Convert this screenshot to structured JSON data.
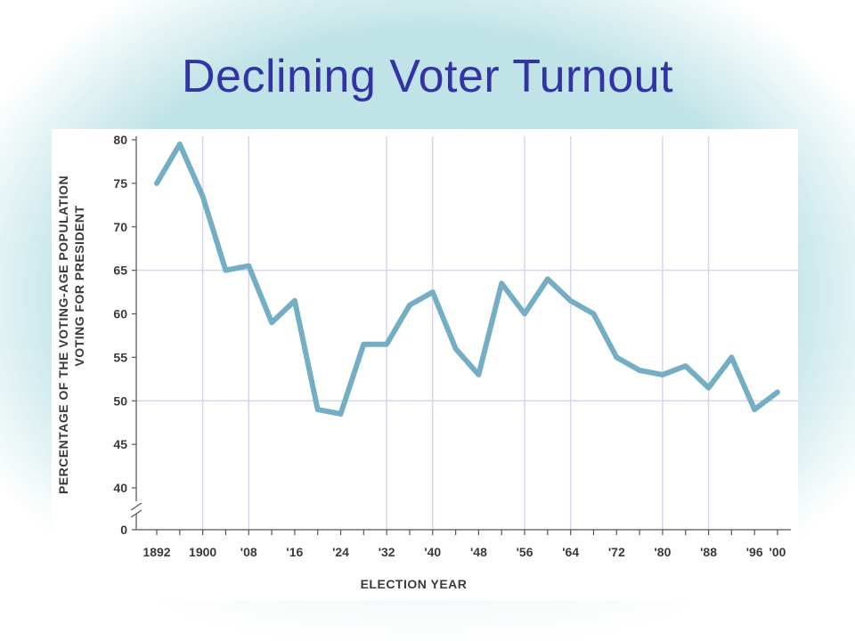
{
  "slide": {
    "title": "Declining Voter Turnout"
  },
  "chart_data": {
    "type": "line",
    "title": "",
    "xlabel": "ELECTION YEAR",
    "ylabel_lines": [
      "PERCENTAGE OF THE VOTING-AGE POPULATION",
      "VOTING FOR PRESIDENT"
    ],
    "x": [
      1892,
      1896,
      1900,
      1904,
      1908,
      1912,
      1916,
      1920,
      1924,
      1928,
      1932,
      1936,
      1940,
      1944,
      1948,
      1952,
      1956,
      1960,
      1964,
      1968,
      1972,
      1976,
      1980,
      1984,
      1988,
      1992,
      1996,
      2000
    ],
    "series": [
      {
        "values": [
          75,
          79.5,
          73.5,
          65,
          65.5,
          59,
          61.5,
          49,
          48.5,
          56.5,
          56.5,
          61,
          62.5,
          56,
          53,
          63.5,
          60,
          64,
          61.5,
          60,
          55,
          53.5,
          53,
          54,
          51.5,
          55,
          49,
          51
        ]
      }
    ],
    "x_ticks": [
      {
        "value": 1892,
        "label": "1892"
      },
      {
        "value": 1900,
        "label": "1900"
      },
      {
        "value": 1908,
        "label": "'08"
      },
      {
        "value": 1916,
        "label": "'16"
      },
      {
        "value": 1924,
        "label": "'24"
      },
      {
        "value": 1932,
        "label": "'32"
      },
      {
        "value": 1940,
        "label": "'40"
      },
      {
        "value": 1948,
        "label": "'48"
      },
      {
        "value": 1956,
        "label": "'56"
      },
      {
        "value": 1964,
        "label": "'64"
      },
      {
        "value": 1972,
        "label": "'72"
      },
      {
        "value": 1980,
        "label": "'80"
      },
      {
        "value": 1988,
        "label": "'88"
      },
      {
        "value": 1996,
        "label": "'96"
      },
      {
        "value": 2000,
        "label": "'00"
      }
    ],
    "y_ticks": [
      {
        "value": 80,
        "label": "80"
      },
      {
        "value": 75,
        "label": "75"
      },
      {
        "value": 70,
        "label": "70"
      },
      {
        "value": 65,
        "label": "65"
      },
      {
        "value": 60,
        "label": "60"
      },
      {
        "value": 55,
        "label": "55"
      },
      {
        "value": 50,
        "label": "50"
      },
      {
        "value": 45,
        "label": "45"
      },
      {
        "value": 40,
        "label": "40"
      },
      {
        "value": 0,
        "label": "0"
      }
    ],
    "ylim": [
      40,
      80
    ],
    "y_axis_break": true,
    "grid_years": [
      1900,
      1908,
      1932,
      1940,
      1956,
      1964,
      1980,
      1988
    ],
    "grid_values": [
      65,
      50
    ],
    "line_color": "#74aec5",
    "grid_color": "#d6d6ee"
  }
}
